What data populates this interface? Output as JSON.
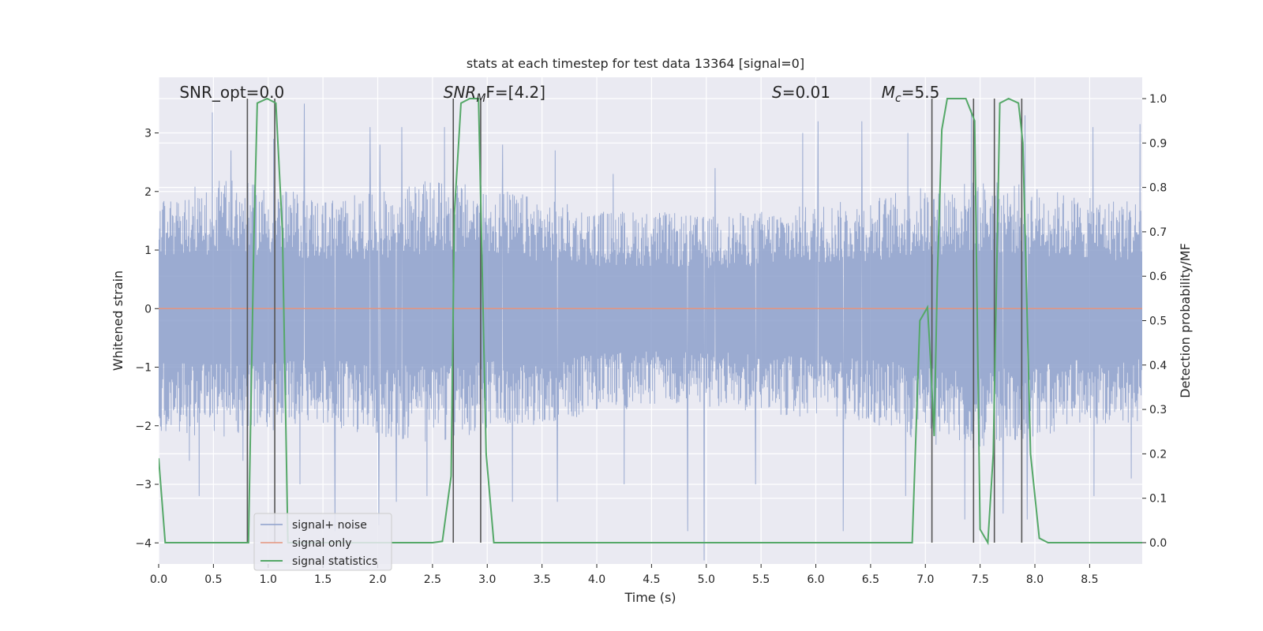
{
  "chart_data": {
    "type": "line",
    "title": "stats at each timestep for test data 13364 [signal=0]",
    "xlabel": "Time (s)",
    "ylabel_left": "Whitened strain",
    "ylabel_right": "Detection probability/MF",
    "xlim": [
      0.0,
      8.98
    ],
    "ylim_left": [
      -4.36,
      3.95
    ],
    "ylim_right": [
      -0.048,
      1.048
    ],
    "grid": true,
    "legend_location": "lower-left",
    "x_ticks": [
      "0.0",
      "0.5",
      "1.0",
      "1.5",
      "2.0",
      "2.5",
      "3.0",
      "3.5",
      "4.0",
      "4.5",
      "5.0",
      "5.5",
      "6.0",
      "6.5",
      "7.0",
      "7.5",
      "8.0",
      "8.5"
    ],
    "y_left_ticks": [
      "3",
      "2",
      "1",
      "0",
      "−1",
      "−2",
      "−3",
      "−4"
    ],
    "y_right_ticks": [
      "1.0",
      "0.9",
      "0.8",
      "0.7",
      "0.6",
      "0.5",
      "0.4",
      "0.3",
      "0.2",
      "0.1",
      "0.0"
    ],
    "annotations": [
      {
        "text": "SNR_opt=0.0",
        "x": 0.19
      },
      {
        "text": "F=[4.2]",
        "prefix": "SNR",
        "sub": "M",
        "x": 2.6
      },
      {
        "text": "=0.01",
        "prefix": "S",
        "x": 5.6
      },
      {
        "text": "=5.5",
        "prefix": "M",
        "sub": "c",
        "x": 6.6
      }
    ],
    "series": [
      {
        "name": "signal+ noise",
        "color": "#8da0cb",
        "axis": "left",
        "envelope_upper": [
          [
            0.0,
            1.9
          ],
          [
            0.3,
            2.0
          ],
          [
            0.6,
            2.1
          ],
          [
            1.0,
            2.0
          ],
          [
            1.5,
            1.8
          ],
          [
            2.0,
            1.9
          ],
          [
            2.5,
            2.1
          ],
          [
            3.0,
            2.0
          ],
          [
            3.5,
            1.8
          ],
          [
            4.0,
            1.6
          ],
          [
            4.5,
            1.6
          ],
          [
            5.0,
            1.5
          ],
          [
            5.5,
            1.6
          ],
          [
            6.0,
            1.7
          ],
          [
            6.5,
            1.8
          ],
          [
            7.0,
            2.0
          ],
          [
            7.5,
            2.1
          ],
          [
            8.0,
            2.0
          ],
          [
            8.5,
            1.8
          ],
          [
            8.98,
            1.8
          ]
        ],
        "envelope_lower": [
          [
            0.0,
            -2.0
          ],
          [
            0.3,
            -2.1
          ],
          [
            0.6,
            -2.1
          ],
          [
            1.0,
            -2.0
          ],
          [
            1.5,
            -1.9
          ],
          [
            2.0,
            -2.1
          ],
          [
            2.5,
            -2.2
          ],
          [
            3.0,
            -2.0
          ],
          [
            3.5,
            -1.9
          ],
          [
            4.0,
            -1.7
          ],
          [
            4.5,
            -1.6
          ],
          [
            5.0,
            -1.6
          ],
          [
            5.5,
            -1.7
          ],
          [
            6.0,
            -1.8
          ],
          [
            6.5,
            -1.9
          ],
          [
            7.0,
            -2.2
          ],
          [
            7.5,
            -2.3
          ],
          [
            8.0,
            -2.1
          ],
          [
            8.5,
            -1.9
          ],
          [
            8.98,
            -1.9
          ]
        ],
        "spikes_up": [
          [
            0.49,
            3.35
          ],
          [
            0.66,
            2.7
          ],
          [
            1.05,
            2.9
          ],
          [
            1.33,
            3.5
          ],
          [
            1.93,
            3.1
          ],
          [
            2.02,
            2.8
          ],
          [
            2.22,
            3.1
          ],
          [
            2.61,
            3.1
          ],
          [
            2.69,
            3.0
          ],
          [
            3.14,
            2.8
          ],
          [
            3.62,
            2.7
          ],
          [
            4.15,
            2.3
          ],
          [
            5.08,
            2.4
          ],
          [
            5.88,
            3.0
          ],
          [
            6.02,
            3.2
          ],
          [
            6.42,
            3.2
          ],
          [
            6.84,
            3.0
          ],
          [
            7.42,
            3.4
          ],
          [
            7.91,
            3.3
          ],
          [
            8.53,
            3.1
          ],
          [
            8.96,
            3.15
          ]
        ],
        "spikes_down": [
          [
            0.28,
            -2.6
          ],
          [
            0.37,
            -3.2
          ],
          [
            0.77,
            -2.6
          ],
          [
            1.29,
            -3.0
          ],
          [
            1.61,
            -3.8
          ],
          [
            2.01,
            -3.7
          ],
          [
            2.17,
            -3.3
          ],
          [
            2.45,
            -3.2
          ],
          [
            3.23,
            -3.3
          ],
          [
            3.64,
            -3.3
          ],
          [
            4.25,
            -3.0
          ],
          [
            4.83,
            -3.8
          ],
          [
            4.98,
            -4.3
          ],
          [
            5.45,
            -3.0
          ],
          [
            6.25,
            -3.8
          ],
          [
            6.82,
            -3.2
          ],
          [
            7.36,
            -3.6
          ],
          [
            7.71,
            -3.5
          ],
          [
            7.93,
            -3.6
          ],
          [
            8.54,
            -3.2
          ],
          [
            8.88,
            -2.9
          ]
        ]
      },
      {
        "name": "signal only",
        "color": "#e5947d",
        "axis": "left",
        "points": [
          [
            0.0,
            0.0
          ],
          [
            8.98,
            0.0
          ]
        ]
      },
      {
        "name": "signal statistics",
        "color": "#55a868",
        "axis": "right",
        "points": [
          [
            0.0,
            0.19
          ],
          [
            0.06,
            0.0
          ],
          [
            0.15,
            0.0
          ],
          [
            0.4,
            0.0
          ],
          [
            0.5,
            0.0
          ],
          [
            0.82,
            0.0
          ],
          [
            0.87,
            0.69
          ],
          [
            0.9,
            0.99
          ],
          [
            0.99,
            1.0
          ],
          [
            1.07,
            0.99
          ],
          [
            1.13,
            0.7
          ],
          [
            1.18,
            0.0
          ],
          [
            2.5,
            0.0
          ],
          [
            2.59,
            0.003
          ],
          [
            2.67,
            0.15
          ],
          [
            2.7,
            0.74
          ],
          [
            2.76,
            0.99
          ],
          [
            2.84,
            1.0
          ],
          [
            2.92,
            1.0
          ],
          [
            2.99,
            0.2
          ],
          [
            3.06,
            0.0
          ],
          [
            6.88,
            0.0
          ],
          [
            6.95,
            0.5
          ],
          [
            7.02,
            0.53
          ],
          [
            7.05,
            0.4
          ],
          [
            7.08,
            0.24
          ],
          [
            7.11,
            0.6
          ],
          [
            7.15,
            0.93
          ],
          [
            7.2,
            1.0
          ],
          [
            7.37,
            1.0
          ],
          [
            7.45,
            0.95
          ],
          [
            7.5,
            0.03
          ],
          [
            7.57,
            0.0
          ],
          [
            7.62,
            0.2
          ],
          [
            7.68,
            0.99
          ],
          [
            7.76,
            1.0
          ],
          [
            7.85,
            0.99
          ],
          [
            7.89,
            0.9
          ],
          [
            7.96,
            0.2
          ],
          [
            8.04,
            0.01
          ],
          [
            8.12,
            0.0
          ],
          [
            8.98,
            0.0
          ]
        ]
      }
    ],
    "vertical_markers": [
      0.81,
      1.06,
      2.69,
      2.94,
      7.06,
      7.44,
      7.63,
      7.88
    ]
  }
}
